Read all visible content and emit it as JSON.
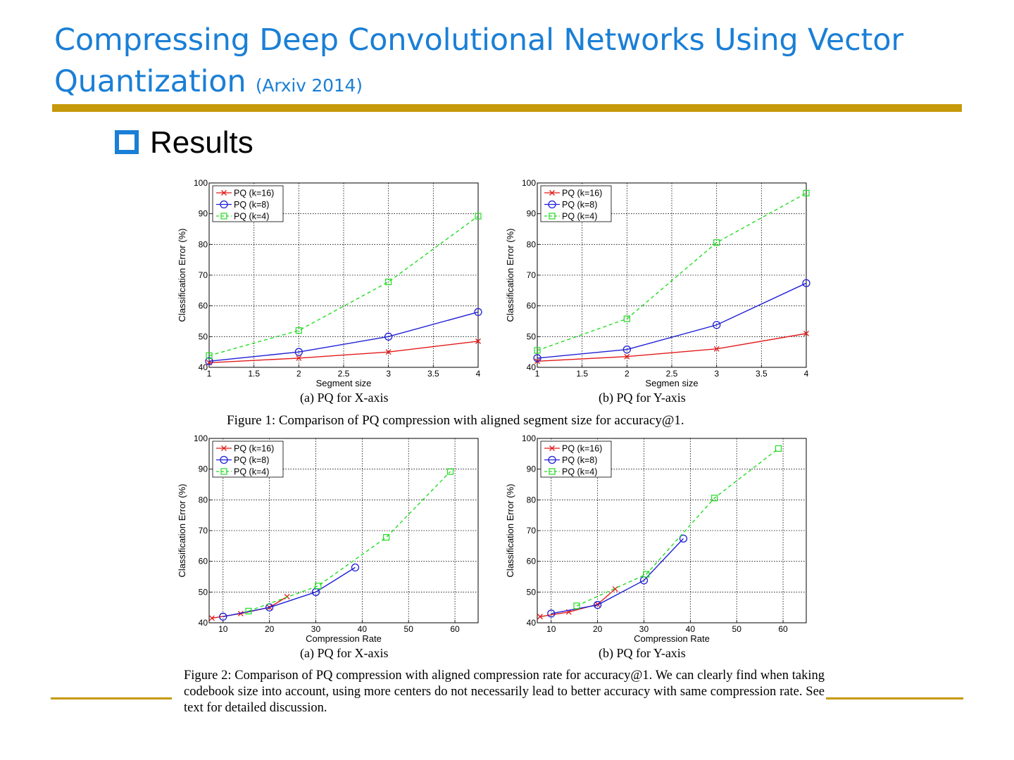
{
  "slide": {
    "title": "Compressing Deep Convolutional Networks Using Vector Quantization",
    "title_note": "(Arxiv 2014)",
    "heading": "Results"
  },
  "figure1": {
    "caption": "Figure 1: Comparison of PQ compression with aligned segment size for accuracy@1.",
    "sub_a": "(a) PQ for X-axis",
    "sub_b": "(b) PQ for Y-axis"
  },
  "figure2": {
    "caption": "Figure 2: Comparison of PQ compression with aligned compression rate for accuracy@1. We can clearly find when taking codebook size into account, using more centers do not necessarily lead to better accuracy with same compression rate. See text for detailed discussion.",
    "sub_a": "(a) PQ for X-axis",
    "sub_b": "(b) PQ for Y-axis"
  },
  "colors": {
    "k16": "#e31a1a",
    "k8": "#1f1fd6",
    "k4": "#22dd22",
    "accent": "#1a7fd6",
    "rule": "#c6990b"
  },
  "chart_data": [
    {
      "type": "line",
      "xlabel": "Segment size",
      "ylabel": "Classification Error (%)",
      "xlim": [
        1,
        4
      ],
      "ylim": [
        40,
        100
      ],
      "xticks": [
        "1",
        "1.5",
        "2",
        "2.5",
        "3",
        "3.5",
        "4"
      ],
      "yticks": [
        "40",
        "50",
        "60",
        "70",
        "80",
        "90",
        "100"
      ],
      "legend": "top-left",
      "series": [
        {
          "name": "PQ (k=16)",
          "marker": "x",
          "dash": false,
          "x": [
            1,
            2,
            3,
            4
          ],
          "y": [
            41.5,
            43,
            45,
            48.5
          ]
        },
        {
          "name": "PQ (k=8)",
          "marker": "o",
          "dash": false,
          "x": [
            1,
            2,
            3,
            4
          ],
          "y": [
            42,
            45,
            50,
            58
          ]
        },
        {
          "name": "PQ (k=4)",
          "marker": "s",
          "dash": true,
          "x": [
            1,
            2,
            3,
            4
          ],
          "y": [
            43.8,
            52,
            67.8,
            89.2
          ]
        }
      ]
    },
    {
      "type": "line",
      "xlabel": "Segmen size",
      "ylabel": "Classification Error (%)",
      "xlim": [
        1,
        4
      ],
      "ylim": [
        40,
        100
      ],
      "xticks": [
        "1",
        "1.5",
        "2",
        "2.5",
        "3",
        "3.5",
        "4"
      ],
      "yticks": [
        "40",
        "50",
        "60",
        "70",
        "80",
        "90",
        "100"
      ],
      "legend": "top-left",
      "series": [
        {
          "name": "PQ (k=16)",
          "marker": "x",
          "dash": false,
          "x": [
            1,
            2,
            3,
            4
          ],
          "y": [
            42,
            43.5,
            46,
            51
          ]
        },
        {
          "name": "PQ (k=8)",
          "marker": "o",
          "dash": false,
          "x": [
            1,
            2,
            3,
            4
          ],
          "y": [
            43,
            45.8,
            53.8,
            67.4
          ]
        },
        {
          "name": "PQ (k=4)",
          "marker": "s",
          "dash": true,
          "x": [
            1,
            2,
            3,
            4
          ],
          "y": [
            45.5,
            55.8,
            80.6,
            96.7
          ]
        }
      ]
    },
    {
      "type": "line",
      "xlabel": "Compression Rate",
      "ylabel": "Classification Error (%)",
      "xlim": [
        7,
        65
      ],
      "ylim": [
        40,
        100
      ],
      "xticks": [
        "10",
        "20",
        "30",
        "40",
        "50",
        "60"
      ],
      "yticks": [
        "40",
        "50",
        "60",
        "70",
        "80",
        "90",
        "100"
      ],
      "legend": "top-left",
      "series": [
        {
          "name": "PQ (k=16)",
          "marker": "x",
          "dash": false,
          "x": [
            7.6,
            13.8,
            20,
            23.8
          ],
          "y": [
            41.5,
            43,
            45,
            48.5
          ]
        },
        {
          "name": "PQ (k=8)",
          "marker": "o",
          "dash": false,
          "x": [
            10,
            20,
            30,
            38.5
          ],
          "y": [
            42,
            45,
            50,
            58
          ]
        },
        {
          "name": "PQ (k=4)",
          "marker": "s",
          "dash": true,
          "x": [
            15.5,
            30.5,
            45.2,
            59
          ],
          "y": [
            43.8,
            52,
            67.8,
            89.2
          ]
        }
      ]
    },
    {
      "type": "line",
      "xlabel": "Compression Rate",
      "ylabel": "Classification Error (%)",
      "xlim": [
        7,
        65
      ],
      "ylim": [
        40,
        100
      ],
      "xticks": [
        "10",
        "20",
        "30",
        "40",
        "50",
        "60"
      ],
      "yticks": [
        "40",
        "50",
        "60",
        "70",
        "80",
        "90",
        "100"
      ],
      "legend": "top-left",
      "series": [
        {
          "name": "PQ (k=16)",
          "marker": "x",
          "dash": false,
          "x": [
            7.6,
            13.8,
            20,
            23.8
          ],
          "y": [
            42,
            43.5,
            46,
            51
          ]
        },
        {
          "name": "PQ (k=8)",
          "marker": "o",
          "dash": false,
          "x": [
            10,
            20,
            30,
            38.5
          ],
          "y": [
            43,
            45.8,
            53.8,
            67.4
          ]
        },
        {
          "name": "PQ (k=4)",
          "marker": "s",
          "dash": true,
          "x": [
            15.5,
            30.5,
            45.2,
            59
          ],
          "y": [
            45.5,
            55.8,
            80.6,
            96.7
          ]
        }
      ]
    }
  ]
}
